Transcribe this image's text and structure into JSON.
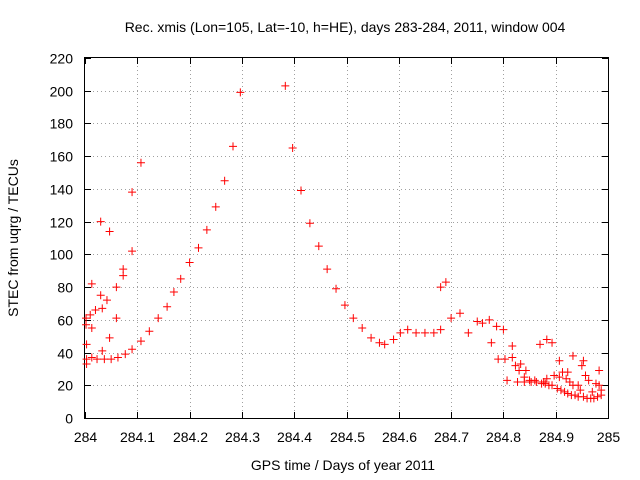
{
  "chart_data": {
    "type": "scatter",
    "title": "Rec. xmis (Lon=105, Lat=-10, h=HE), days 283-284, 2011, window 004",
    "xlabel": "GPS time / Days of year 2011",
    "ylabel": "STEC from uqrg / TECUs",
    "xlim": [
      284,
      285
    ],
    "ylim": [
      0,
      220
    ],
    "x_ticks": [
      284,
      284.1,
      284.2,
      284.3,
      284.4,
      284.5,
      284.6,
      284.7,
      284.8,
      284.9,
      285
    ],
    "x_tick_labels": [
      "284",
      "284.1",
      "284.2",
      "284.3",
      "284.4",
      "284.5",
      "284.6",
      "284.7",
      "284.8",
      "284.9",
      "285"
    ],
    "y_ticks": [
      0,
      20,
      40,
      60,
      80,
      100,
      120,
      140,
      160,
      180,
      200,
      220
    ],
    "y_tick_labels": [
      "0",
      "20",
      "40",
      "60",
      "80",
      "100",
      "120",
      "140",
      "160",
      "180",
      "200",
      "220"
    ],
    "grid": true,
    "marker": "+",
    "color": "#ff0000",
    "points": [
      [
        284.002,
        61
      ],
      [
        284.002,
        57
      ],
      [
        284.003,
        45
      ],
      [
        284.003,
        36
      ],
      [
        284.003,
        33
      ],
      [
        284.01,
        63
      ],
      [
        284.013,
        82
      ],
      [
        284.013,
        55
      ],
      [
        284.013,
        37
      ],
      [
        284.02,
        66
      ],
      [
        284.023,
        36
      ],
      [
        284.03,
        120
      ],
      [
        284.03,
        75
      ],
      [
        284.033,
        41
      ],
      [
        284.033,
        67
      ],
      [
        284.037,
        36
      ],
      [
        284.042,
        72
      ],
      [
        284.047,
        114
      ],
      [
        284.047,
        49
      ],
      [
        284.05,
        36
      ],
      [
        284.06,
        80
      ],
      [
        284.06,
        61
      ],
      [
        284.063,
        37
      ],
      [
        284.073,
        87
      ],
      [
        284.073,
        91
      ],
      [
        284.077,
        39
      ],
      [
        284.09,
        138
      ],
      [
        284.09,
        102
      ],
      [
        284.09,
        42
      ],
      [
        284.107,
        156
      ],
      [
        284.107,
        47
      ],
      [
        284.123,
        53
      ],
      [
        284.14,
        61
      ],
      [
        284.157,
        68
      ],
      [
        284.17,
        77
      ],
      [
        284.183,
        85
      ],
      [
        284.2,
        95
      ],
      [
        284.217,
        104
      ],
      [
        284.233,
        115
      ],
      [
        284.25,
        129
      ],
      [
        284.267,
        145
      ],
      [
        284.283,
        166
      ],
      [
        284.297,
        199
      ],
      [
        284.383,
        203
      ],
      [
        284.397,
        165
      ],
      [
        284.413,
        139
      ],
      [
        284.43,
        119
      ],
      [
        284.447,
        105
      ],
      [
        284.463,
        91
      ],
      [
        284.48,
        79
      ],
      [
        284.497,
        69
      ],
      [
        284.513,
        61
      ],
      [
        284.53,
        55
      ],
      [
        284.547,
        49
      ],
      [
        284.563,
        46
      ],
      [
        284.573,
        45
      ],
      [
        284.59,
        48
      ],
      [
        284.603,
        52
      ],
      [
        284.617,
        54
      ],
      [
        284.633,
        52
      ],
      [
        284.65,
        52
      ],
      [
        284.667,
        52
      ],
      [
        284.68,
        80
      ],
      [
        284.68,
        54
      ],
      [
        284.69,
        83
      ],
      [
        284.7,
        61
      ],
      [
        284.717,
        64
      ],
      [
        284.733,
        52
      ],
      [
        284.75,
        59
      ],
      [
        284.76,
        58
      ],
      [
        284.773,
        60
      ],
      [
        284.777,
        46
      ],
      [
        284.787,
        56
      ],
      [
        284.79,
        36
      ],
      [
        284.8,
        54
      ],
      [
        284.803,
        36
      ],
      [
        284.807,
        23
      ],
      [
        284.817,
        44
      ],
      [
        284.817,
        37
      ],
      [
        284.823,
        32
      ],
      [
        284.827,
        22
      ],
      [
        284.83,
        29
      ],
      [
        284.833,
        33
      ],
      [
        284.84,
        25
      ],
      [
        284.84,
        22
      ],
      [
        284.843,
        29
      ],
      [
        284.85,
        23
      ],
      [
        284.853,
        22
      ],
      [
        284.86,
        23
      ],
      [
        284.863,
        22
      ],
      [
        284.87,
        45
      ],
      [
        284.873,
        21
      ],
      [
        284.877,
        22
      ],
      [
        284.88,
        21
      ],
      [
        284.883,
        48
      ],
      [
        284.883,
        24
      ],
      [
        284.887,
        20
      ],
      [
        284.893,
        46
      ],
      [
        284.893,
        20
      ],
      [
        284.897,
        26
      ],
      [
        284.903,
        18
      ],
      [
        284.907,
        35
      ],
      [
        284.907,
        25
      ],
      [
        284.91,
        17
      ],
      [
        284.913,
        28
      ],
      [
        284.917,
        16
      ],
      [
        284.92,
        24
      ],
      [
        284.923,
        15
      ],
      [
        284.923,
        28
      ],
      [
        284.927,
        22
      ],
      [
        284.93,
        14
      ],
      [
        284.933,
        38
      ],
      [
        284.933,
        20
      ],
      [
        284.937,
        14
      ],
      [
        284.943,
        20
      ],
      [
        284.943,
        13
      ],
      [
        284.947,
        17
      ],
      [
        284.95,
        32
      ],
      [
        284.953,
        13
      ],
      [
        284.953,
        35
      ],
      [
        284.957,
        26
      ],
      [
        284.96,
        12
      ],
      [
        284.963,
        23
      ],
      [
        284.967,
        12
      ],
      [
        284.97,
        16
      ],
      [
        284.973,
        12
      ],
      [
        284.977,
        21
      ],
      [
        284.98,
        13
      ],
      [
        284.983,
        20
      ],
      [
        284.983,
        29
      ],
      [
        284.987,
        14
      ],
      [
        284.987,
        17
      ]
    ]
  }
}
